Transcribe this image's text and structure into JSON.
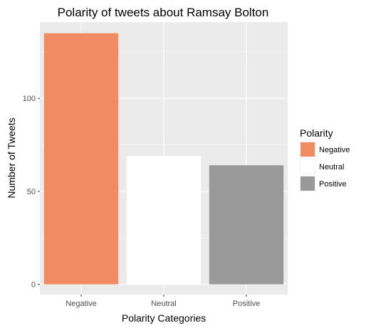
{
  "chart_data": {
    "type": "bar",
    "title": "Polarity of tweets about Ramsay Bolton",
    "xlabel": "Polarity Categories",
    "ylabel": "Number of Tweets",
    "categories": [
      "Negative",
      "Neutral",
      "Positive"
    ],
    "values": [
      135,
      69,
      64
    ],
    "colors": [
      "#f08b62",
      "#ffffff",
      "#999999"
    ],
    "ylim": [
      -5.5,
      141
    ],
    "yticks": [
      0,
      50,
      100
    ],
    "grid": true,
    "panel_background": "#ebebeb",
    "legend": {
      "title": "Polarity",
      "position": "right",
      "entries": [
        "Negative",
        "Neutral",
        "Positive"
      ]
    }
  }
}
